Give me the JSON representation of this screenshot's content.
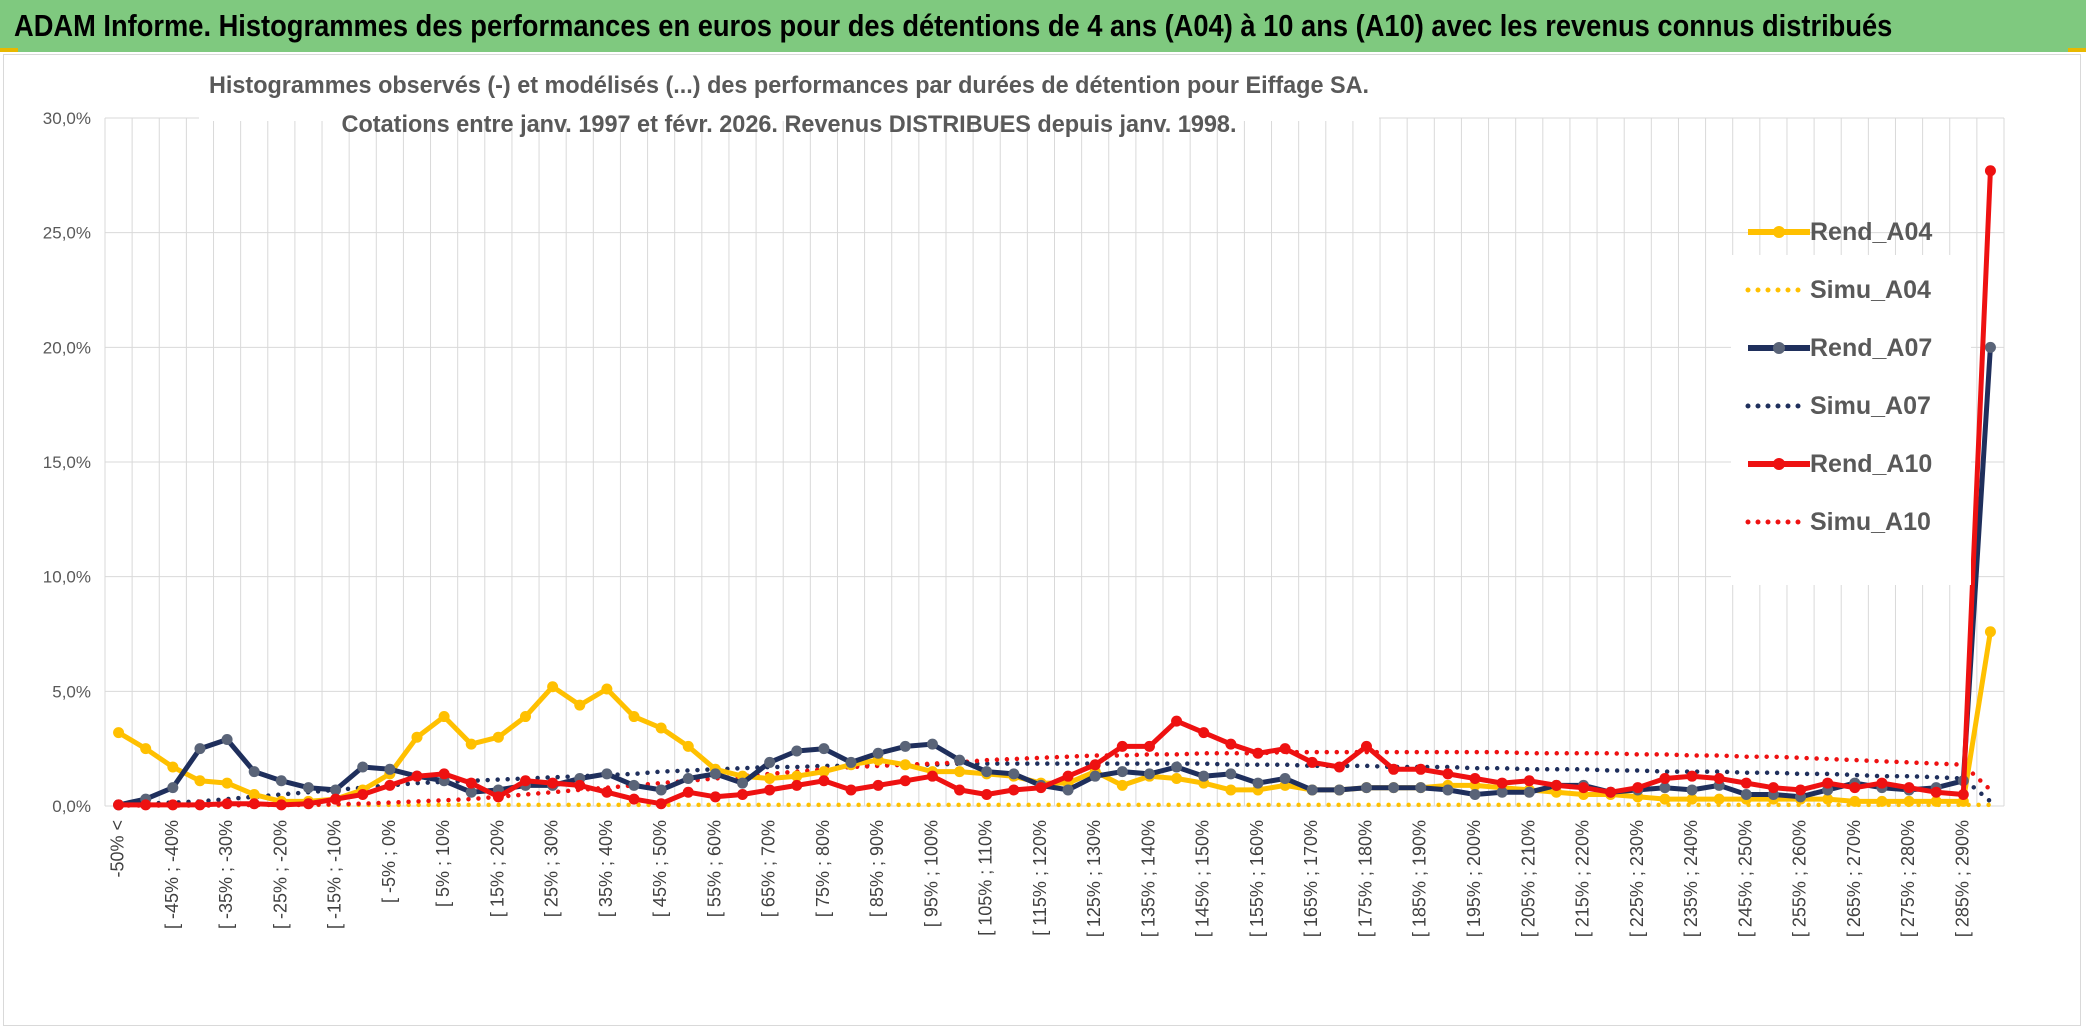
{
  "header": {
    "title": "ADAM Informe. Histogrammes des performances en euros pour des détentions de 4 ans (A04) à 10 ans (A10) avec les revenus connus distribués"
  },
  "colors": {
    "banner": "#7fc97f",
    "banner_accent": "#e8b800",
    "A04": "#ffc000",
    "A07": "#1f2f5c",
    "A10": "#ee1111",
    "grid": "#d9d9d9",
    "marker_A07": "#5a6478"
  },
  "chart_data": {
    "type": "line",
    "title_line1": "Histogrammes observés (-) et modélisés (...) des performances par durées de détention pour Eiffage SA.",
    "title_line2": "Cotations entre janv. 1997 et févr. 2026. Revenus DISTRIBUES depuis janv. 1998.",
    "y_ticks": [
      "0,0%",
      "5,0%",
      "10,0%",
      "15,0%",
      "20,0%",
      "25,0%",
      "30,0%"
    ],
    "ylim": [
      0,
      30
    ],
    "x_labels": [
      "-50% <",
      "[ -45% ; -40%",
      "[ -35% ; -30%",
      "[ -25% ; -20%",
      "[ -15% ; -10%",
      "[ -5% ; 0%",
      "[ 5% ; 10%",
      "[ 15% ; 20%",
      "[ 25% ; 30%",
      "[ 35% ; 40%",
      "[ 45% ; 50%",
      "[ 55% ; 60%",
      "[ 65% ; 70%",
      "[ 75% ; 80%",
      "[ 85% ; 90%",
      "[ 95% ; 100%",
      "[ 105% ; 110%",
      "[ 115% ; 120%",
      "[ 125% ; 130%",
      "[ 135% ; 140%",
      "[ 145% ; 150%",
      "[ 155% ; 160%",
      "[ 165% ; 170%",
      "[ 175% ; 180%",
      "[ 185% ; 190%",
      "[ 195% ; 200%",
      "[ 205% ; 210%",
      "[ 215% ; 220%",
      "[ 225% ; 230%",
      "[ 235% ; 240%",
      "[ 245% ; 250%",
      "[ 255% ; 260%",
      "[ 265% ; 270%",
      "[ 275% ; 280%",
      "[ 285% ; 290%"
    ],
    "n_categories": 70,
    "legend": [
      "Rend_A04",
      "Simu_A04",
      "Rend_A07",
      "Simu_A07",
      "Rend_A10",
      "Simu_A10"
    ],
    "legend_position": "right",
    "series": [
      {
        "name": "Rend_A04",
        "style": "solid",
        "color": "#ffc000",
        "values": [
          3.2,
          2.5,
          1.7,
          1.1,
          1.0,
          0.5,
          0.2,
          0.2,
          0.3,
          0.7,
          1.4,
          3.0,
          3.9,
          2.7,
          3.0,
          3.9,
          5.2,
          4.4,
          5.1,
          3.9,
          3.4,
          2.6,
          1.6,
          1.3,
          1.2,
          1.3,
          1.5,
          1.8,
          2.0,
          1.8,
          1.5,
          1.5,
          1.4,
          1.3,
          1.0,
          1.0,
          1.5,
          0.9,
          1.3,
          1.2,
          1.0,
          0.7,
          0.7,
          0.9,
          0.7,
          0.7,
          0.8,
          0.8,
          0.8,
          0.9,
          0.9,
          0.8,
          0.7,
          0.6,
          0.5,
          0.5,
          0.4,
          0.3,
          0.3,
          0.3,
          0.3,
          0.3,
          0.3,
          0.3,
          0.2,
          0.2,
          0.2,
          0.2,
          0.2,
          7.6
        ]
      },
      {
        "name": "Simu_A04",
        "style": "dotted",
        "color": "#ffc000",
        "values": [
          0.05,
          0.05,
          0.05,
          0.05,
          0.05,
          0.05,
          0.05,
          0.05,
          0.05,
          0.05,
          0.05,
          0.05,
          0.05,
          0.05,
          0.05,
          0.05,
          0.05,
          0.05,
          0.05,
          0.05,
          0.05,
          0.05,
          0.05,
          0.05,
          0.05,
          0.05,
          0.05,
          0.05,
          0.05,
          0.05,
          0.05,
          0.05,
          0.05,
          0.05,
          0.05,
          0.05,
          0.05,
          0.05,
          0.05,
          0.05,
          0.05,
          0.05,
          0.05,
          0.05,
          0.05,
          0.05,
          0.05,
          0.05,
          0.05,
          0.05,
          0.05,
          0.05,
          0.05,
          0.05,
          0.05,
          0.05,
          0.05,
          0.05,
          0.05,
          0.05,
          0.05,
          0.05,
          0.05,
          0.05,
          0.05,
          0.05,
          0.05,
          0.05,
          0.05,
          0.05
        ]
      },
      {
        "name": "Rend_A07",
        "style": "solid",
        "color": "#1f2f5c",
        "values": [
          0.05,
          0.3,
          0.8,
          2.5,
          2.9,
          1.5,
          1.1,
          0.8,
          0.7,
          1.7,
          1.6,
          1.3,
          1.1,
          0.6,
          0.7,
          0.9,
          0.9,
          1.2,
          1.4,
          0.9,
          0.7,
          1.2,
          1.4,
          1.0,
          1.9,
          2.4,
          2.5,
          1.9,
          2.3,
          2.6,
          2.7,
          2.0,
          1.5,
          1.4,
          0.9,
          0.7,
          1.3,
          1.5,
          1.4,
          1.7,
          1.3,
          1.4,
          1.0,
          1.2,
          0.7,
          0.7,
          0.8,
          0.8,
          0.8,
          0.7,
          0.5,
          0.6,
          0.6,
          0.9,
          0.9,
          0.6,
          0.7,
          0.8,
          0.7,
          0.9,
          0.5,
          0.5,
          0.4,
          0.7,
          1.0,
          0.8,
          0.7,
          0.8,
          1.1,
          20.0
        ]
      },
      {
        "name": "Simu_A07",
        "style": "dotted",
        "color": "#1f2f5c",
        "values": [
          0.05,
          0.1,
          0.15,
          0.2,
          0.3,
          0.4,
          0.5,
          0.6,
          0.7,
          0.8,
          0.9,
          1.0,
          1.05,
          1.1,
          1.15,
          1.2,
          1.25,
          1.3,
          1.35,
          1.4,
          1.5,
          1.55,
          1.6,
          1.65,
          1.7,
          1.7,
          1.75,
          1.75,
          1.8,
          1.8,
          1.8,
          1.85,
          1.85,
          1.85,
          1.85,
          1.85,
          1.85,
          1.85,
          1.85,
          1.85,
          1.85,
          1.8,
          1.8,
          1.8,
          1.75,
          1.75,
          1.75,
          1.7,
          1.7,
          1.7,
          1.65,
          1.65,
          1.6,
          1.6,
          1.6,
          1.55,
          1.55,
          1.5,
          1.5,
          1.5,
          1.45,
          1.45,
          1.4,
          1.4,
          1.35,
          1.3,
          1.3,
          1.25,
          1.2,
          0.2
        ]
      },
      {
        "name": "Rend_A10",
        "style": "solid",
        "color": "#ee1111",
        "values": [
          0.05,
          0.05,
          0.05,
          0.05,
          0.1,
          0.1,
          0.05,
          0.1,
          0.3,
          0.5,
          0.9,
          1.3,
          1.4,
          1.0,
          0.4,
          1.1,
          1.0,
          0.9,
          0.6,
          0.3,
          0.1,
          0.6,
          0.4,
          0.5,
          0.7,
          0.9,
          1.1,
          0.7,
          0.9,
          1.1,
          1.3,
          0.7,
          0.5,
          0.7,
          0.8,
          1.3,
          1.8,
          2.6,
          2.6,
          3.7,
          3.2,
          2.7,
          2.3,
          2.5,
          1.9,
          1.7,
          2.6,
          1.6,
          1.6,
          1.4,
          1.2,
          1.0,
          1.1,
          0.9,
          0.8,
          0.6,
          0.8,
          1.2,
          1.3,
          1.2,
          1.0,
          0.8,
          0.7,
          1.0,
          0.8,
          1.0,
          0.8,
          0.6,
          0.5,
          27.7
        ]
      },
      {
        "name": "Simu_A10",
        "style": "dotted",
        "color": "#ee1111",
        "values": [
          0.02,
          0.02,
          0.02,
          0.02,
          0.02,
          0.05,
          0.05,
          0.05,
          0.08,
          0.1,
          0.15,
          0.2,
          0.25,
          0.3,
          0.4,
          0.5,
          0.6,
          0.7,
          0.8,
          0.9,
          1.0,
          1.1,
          1.2,
          1.3,
          1.4,
          1.5,
          1.6,
          1.7,
          1.75,
          1.8,
          1.85,
          1.9,
          2.0,
          2.05,
          2.1,
          2.15,
          2.2,
          2.2,
          2.25,
          2.25,
          2.3,
          2.3,
          2.3,
          2.35,
          2.35,
          2.35,
          2.35,
          2.35,
          2.35,
          2.35,
          2.35,
          2.35,
          2.3,
          2.3,
          2.3,
          2.3,
          2.25,
          2.25,
          2.2,
          2.2,
          2.15,
          2.15,
          2.1,
          2.05,
          2.0,
          1.95,
          1.9,
          1.85,
          1.8,
          0.7
        ]
      }
    ]
  }
}
